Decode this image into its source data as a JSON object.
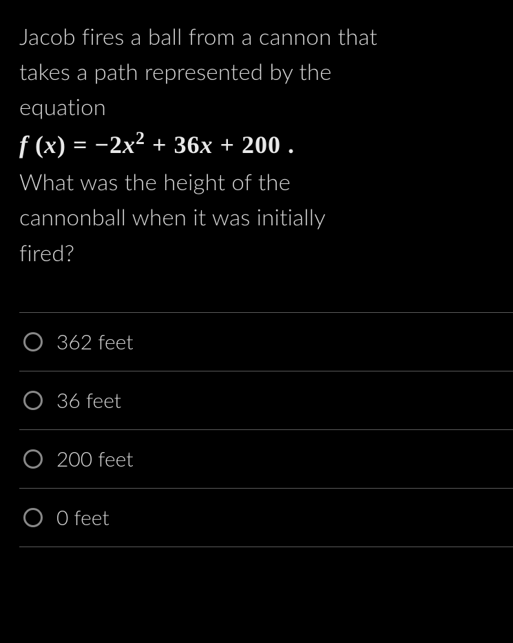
{
  "question": {
    "line1": "Jacob fires a ball from a cannon that",
    "line2": "takes a path represented by the",
    "line3": "equation",
    "line4": "What was the height of the",
    "line5": "cannonball when it was initially",
    "line6": "fired?",
    "equation": {
      "lhs_f": "f",
      "lhs_open": " (",
      "lhs_x": "x",
      "lhs_close": ") ",
      "eq": "= ",
      "neg": "−",
      "coef1": "2",
      "var1": "x",
      "exp": "2",
      "plus1": " + 36",
      "var2": "x",
      "plus2": " + 200",
      "period": " ."
    }
  },
  "options": [
    {
      "label": "362 feet"
    },
    {
      "label": "36 feet"
    },
    {
      "label": "200 feet"
    },
    {
      "label": "0 feet"
    }
  ],
  "colors": {
    "background": "#000000",
    "text": "#d8d8d8",
    "equation_text": "#e8e8e8",
    "divider": "#5a5a5a",
    "radio_border": "#888888"
  },
  "typography": {
    "question_fontsize": 33,
    "question_fontweight": 300,
    "equation_fontsize": 36,
    "equation_fontweight": 600,
    "option_fontsize": 30,
    "option_fontweight": 300
  }
}
